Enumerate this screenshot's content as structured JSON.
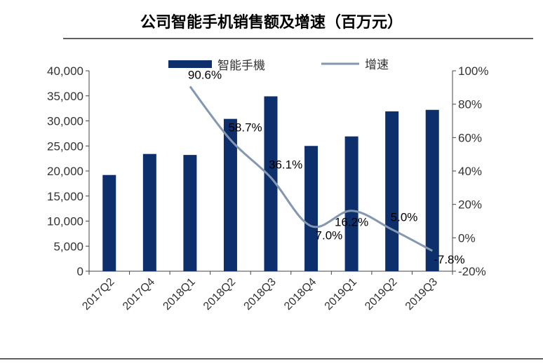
{
  "chart_data": {
    "type": "bar+line",
    "title": "公司智能手机销售额及增速（百万元）",
    "categories": [
      "2017Q2",
      "2017Q4",
      "2018Q1",
      "2018Q2",
      "2018Q3",
      "2018Q4",
      "2019Q1",
      "2019Q2",
      "2019Q3"
    ],
    "series": [
      {
        "name": "智能手機",
        "type": "bar",
        "axis": "left",
        "color": "#0d2f6b",
        "values": [
          19200,
          23400,
          23200,
          30400,
          34900,
          25000,
          26900,
          31900,
          32200
        ]
      },
      {
        "name": "增速",
        "type": "line",
        "axis": "right",
        "color": "#8497b0",
        "values": [
          null,
          null,
          90.6,
          58.7,
          36.1,
          7.0,
          16.2,
          5.0,
          -7.8
        ],
        "labels": [
          "",
          "",
          "90.6%",
          "58.7%",
          "36.1%",
          "7.0%",
          "16.2%",
          "5.0%",
          "-7.8%"
        ]
      }
    ],
    "y_left": {
      "min": 0,
      "max": 40000,
      "ticks": [
        "0",
        "5,000",
        "10,000",
        "15,000",
        "20,000",
        "25,000",
        "30,000",
        "35,000",
        "40,000"
      ]
    },
    "y_right": {
      "min": -20,
      "max": 100,
      "ticks": [
        "-20%",
        "0%",
        "20%",
        "40%",
        "60%",
        "80%",
        "100%"
      ]
    },
    "legend": {
      "placement": "top",
      "entries": [
        "智能手機",
        "增速"
      ]
    },
    "grid": false
  }
}
